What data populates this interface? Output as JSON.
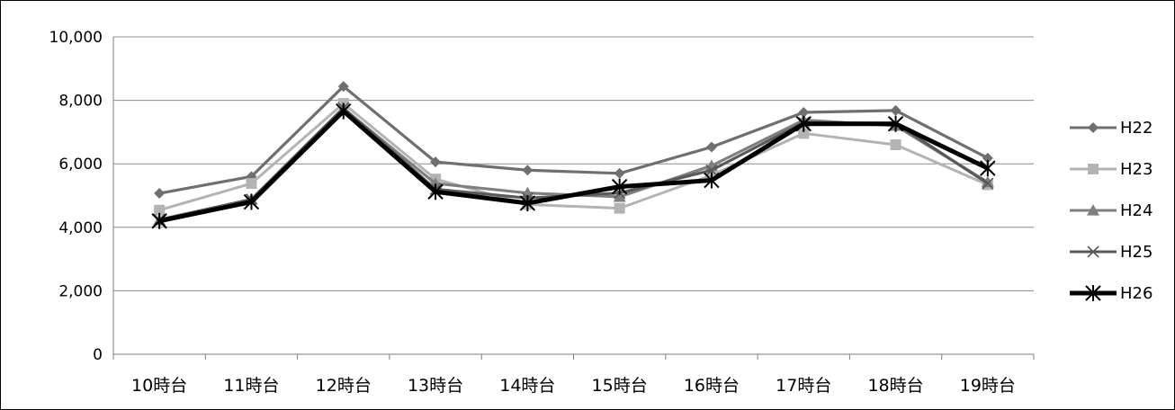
{
  "chart_data": {
    "type": "line",
    "title": "",
    "xlabel": "",
    "ylabel": "",
    "categories": [
      "10時台",
      "11時台",
      "12時台",
      "13時台",
      "14時台",
      "15時台",
      "16時台",
      "17時台",
      "18時台",
      "19時台"
    ],
    "ylim": [
      0,
      10000
    ],
    "yticks": [
      0,
      2000,
      4000,
      6000,
      8000,
      10000
    ],
    "ytick_labels": [
      "0",
      "2,000",
      "4,000",
      "6,000",
      "8,000",
      "10,000"
    ],
    "grid": true,
    "legend_position": "right",
    "series": [
      {
        "name": "H22",
        "marker": "diamond",
        "color": "#6f6f6f",
        "values": [
          5070,
          5600,
          8440,
          6060,
          5800,
          5700,
          6530,
          7620,
          7680,
          6180
        ]
      },
      {
        "name": "H23",
        "marker": "square",
        "color": "#b3b3b3",
        "values": [
          4540,
          5380,
          7900,
          5520,
          4720,
          4600,
          5640,
          6960,
          6600,
          5340
        ]
      },
      {
        "name": "H24",
        "marker": "triangle",
        "color": "#7f7f7f",
        "values": [
          4220,
          4880,
          7740,
          5380,
          5080,
          4960,
          5940,
          7380,
          7200,
          5420
        ]
      },
      {
        "name": "H25",
        "marker": "x",
        "color": "#595959",
        "values": [
          4240,
          4880,
          7760,
          5200,
          4920,
          5080,
          5800,
          7300,
          7280,
          5380
        ]
      },
      {
        "name": "H26",
        "marker": "star",
        "color": "#000000",
        "values": [
          4200,
          4800,
          7660,
          5120,
          4760,
          5280,
          5480,
          7260,
          7260,
          5860
        ]
      }
    ]
  }
}
